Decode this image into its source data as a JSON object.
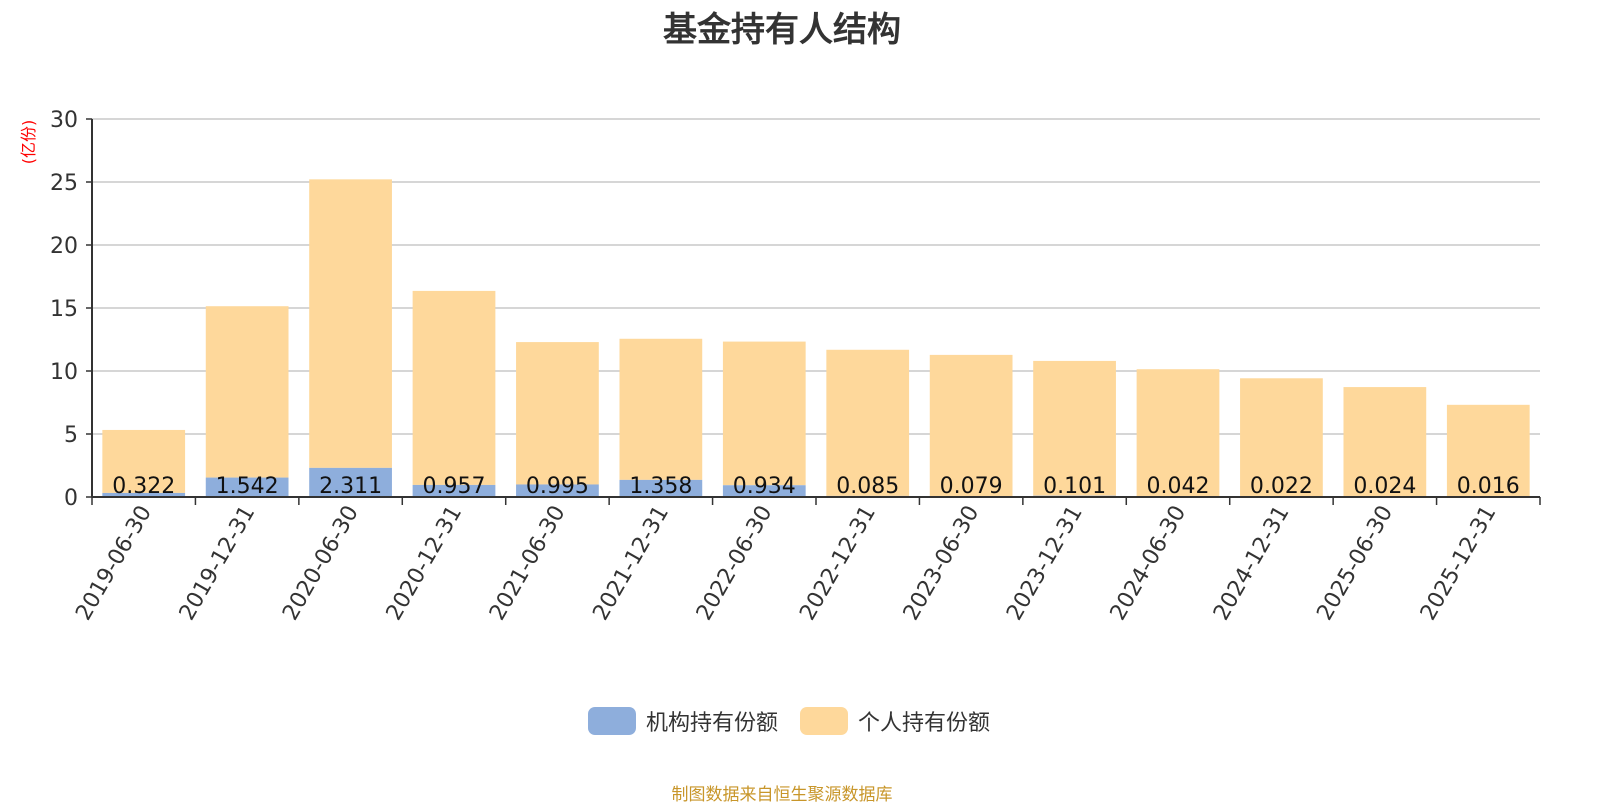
{
  "chart_data": {
    "type": "bar",
    "stacked": true,
    "title": "基金持有人结构",
    "ylabel": "(亿份)",
    "ylim": [
      0,
      30
    ],
    "yticks": [
      0,
      5,
      10,
      15,
      20,
      25,
      30
    ],
    "grid": true,
    "legend_position": "bottom",
    "categories": [
      "2019-06-30",
      "2019-12-31",
      "2020-06-30",
      "2020-12-31",
      "2021-06-30",
      "2021-12-31",
      "2022-06-30",
      "2022-12-31",
      "2023-06-30",
      "2023-12-31",
      "2024-06-30",
      "2024-12-31",
      "2025-06-30",
      "2025-12-31"
    ],
    "series": [
      {
        "name": "机构持有份额",
        "color": "#8eaedc",
        "values": [
          0.322,
          1.542,
          2.311,
          0.957,
          0.995,
          1.358,
          0.934,
          0.085,
          0.079,
          0.101,
          0.042,
          0.022,
          0.024,
          0.016
        ],
        "labels": [
          "0.322",
          "1.542",
          "2.311",
          "0.957",
          "0.995",
          "1.358",
          "0.934",
          "0.085",
          "0.079",
          "0.101",
          "0.042",
          "0.022",
          "0.024",
          "0.016"
        ]
      },
      {
        "name": "个人持有份额",
        "color": "#fed89b",
        "values": [
          5.0,
          13.6,
          22.9,
          15.4,
          11.3,
          11.2,
          11.4,
          11.6,
          11.2,
          10.7,
          10.1,
          9.4,
          8.7,
          7.3
        ]
      }
    ]
  },
  "colors": {
    "axis": "#333333",
    "grid": "#c8c8c8",
    "ylabel": "#ff0000",
    "source": "#c8962a"
  },
  "footer": {
    "source": "制图数据来自恒生聚源数据库"
  }
}
